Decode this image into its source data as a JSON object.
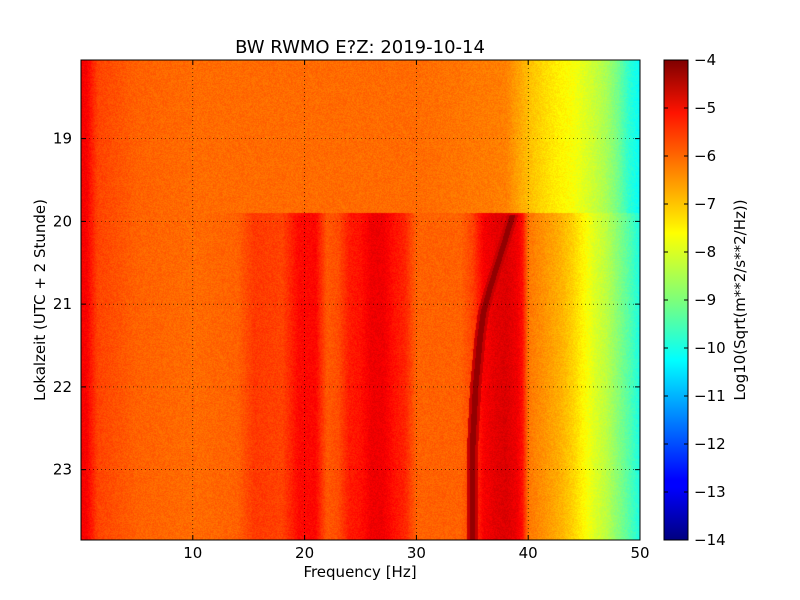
{
  "chart_data": {
    "type": "heatmap",
    "title": "BW RWMO E?Z: 2019-10-14",
    "xlabel": "Frequency [Hz]",
    "ylabel": "Lokalzeit (UTC + 2 Stunde)",
    "xlim": [
      0,
      50
    ],
    "ylim": [
      18.05,
      23.85
    ],
    "y_inverted": true,
    "x_ticks": [
      10,
      20,
      30,
      40,
      50
    ],
    "x_tick_labels": [
      "10",
      "20",
      "30",
      "40",
      "50"
    ],
    "y_ticks": [
      19,
      20,
      21,
      22,
      23
    ],
    "y_tick_labels": [
      "19",
      "20",
      "21",
      "22",
      "23"
    ],
    "grid": true,
    "colormap": "jet",
    "colorbar": {
      "label": "Log10(Sqrt(m**2/s**2/Hz))",
      "range": [
        -14,
        -4
      ],
      "ticks": [
        -4,
        -5,
        -6,
        -7,
        -8,
        -9,
        -10,
        -11,
        -12,
        -13,
        -14
      ],
      "tick_labels": [
        "−4",
        "−5",
        "−6",
        "−7",
        "−8",
        "−9",
        "−10",
        "−11",
        "−12",
        "−13",
        "−14"
      ]
    },
    "event_start_time": 19.9,
    "before_event": {
      "freq": [
        0.5,
        1.5,
        5,
        10,
        20,
        30,
        38,
        40,
        42,
        44,
        46,
        47,
        48,
        49,
        50
      ],
      "level": [
        -5.2,
        -5.9,
        -6.2,
        -6.3,
        -6.3,
        -6.3,
        -6.5,
        -7.1,
        -7.5,
        -7.8,
        -8.3,
        -8.6,
        -9.1,
        -9.8,
        -10.2
      ]
    },
    "after_event": {
      "freq": [
        0.5,
        1.5,
        5,
        10,
        14,
        15.5,
        18,
        19.5,
        21,
        22,
        23,
        24,
        25,
        26,
        27,
        28,
        29,
        30,
        31,
        33,
        34,
        35,
        36,
        37,
        38,
        39,
        39.5,
        40,
        41,
        42,
        43,
        44,
        45,
        46,
        47,
        48,
        49,
        50
      ],
      "level": [
        -5.2,
        -5.9,
        -6.2,
        -6.3,
        -6.2,
        -5.8,
        -5.9,
        -5.3,
        -5.3,
        -6.1,
        -6.0,
        -5.5,
        -5.4,
        -5.1,
        -5.1,
        -5.4,
        -5.6,
        -6.2,
        -6.2,
        -6.2,
        -6.2,
        -5.9,
        -5.2,
        -5.0,
        -4.9,
        -5.1,
        -5.4,
        -6.4,
        -6.6,
        -6.8,
        -7.0,
        -7.3,
        -7.7,
        -8.1,
        -8.4,
        -8.9,
        -9.4,
        -10.0
      ]
    },
    "tonal_line": {
      "time": [
        19.92,
        20.2,
        20.5,
        20.8,
        21.1,
        21.4,
        21.7,
        22.0,
        22.4,
        22.8,
        23.2,
        23.6,
        23.85
      ],
      "freq": [
        38.6,
        38.0,
        37.3,
        36.6,
        36.0,
        35.7,
        35.5,
        35.3,
        35.15,
        35.0,
        35.0,
        35.0,
        35.0
      ]
    }
  }
}
